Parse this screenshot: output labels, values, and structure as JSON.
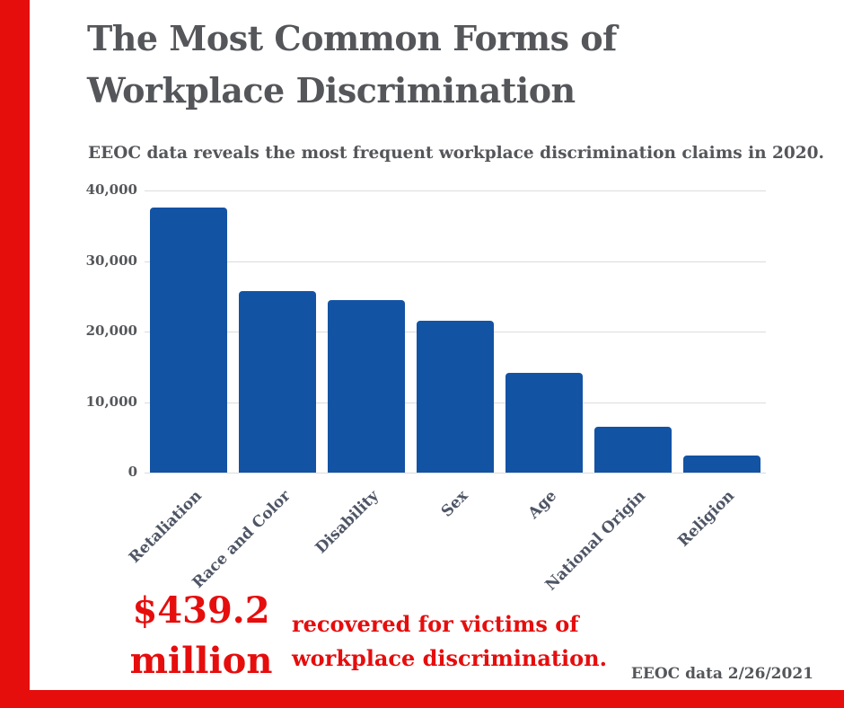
{
  "page": {
    "title": "The Most Common Forms of Workplace Discrimination",
    "subtitle": "EEOC data reveals the most frequent workplace discrimination claims in 2020.",
    "source_note": "EEOC data 2/26/2021"
  },
  "highlight": {
    "amount_value": "$439.2",
    "amount_unit": "million",
    "description": "recovered for victims of workplace discrimination."
  },
  "colors": {
    "accent_red": "#e60d0d",
    "bar_blue": "#1353a4",
    "text_gray": "#54565a",
    "category_slate": "#4e5565",
    "gridline": "#dcdcdc"
  },
  "chart_data": {
    "type": "bar",
    "title": "The Most Common Forms of Workplace Discrimination",
    "subtitle": "EEOC data reveals the most frequent workplace discrimination claims in 2020.",
    "categories": [
      "Retaliation",
      "Race and Color",
      "Disability",
      "Sex",
      "Age",
      "National Origin",
      "Religion"
    ],
    "values": [
      37600,
      25700,
      24400,
      21500,
      14200,
      6500,
      2400
    ],
    "xlabel": "",
    "ylabel": "",
    "ylim": [
      0,
      40000
    ],
    "yticks": [
      0,
      10000,
      20000,
      30000,
      40000
    ],
    "ytick_labels": [
      "0",
      "10,000",
      "20,000",
      "30,000",
      "40,000"
    ],
    "grid": true,
    "legend": false,
    "bar_color": "#1353a4"
  }
}
